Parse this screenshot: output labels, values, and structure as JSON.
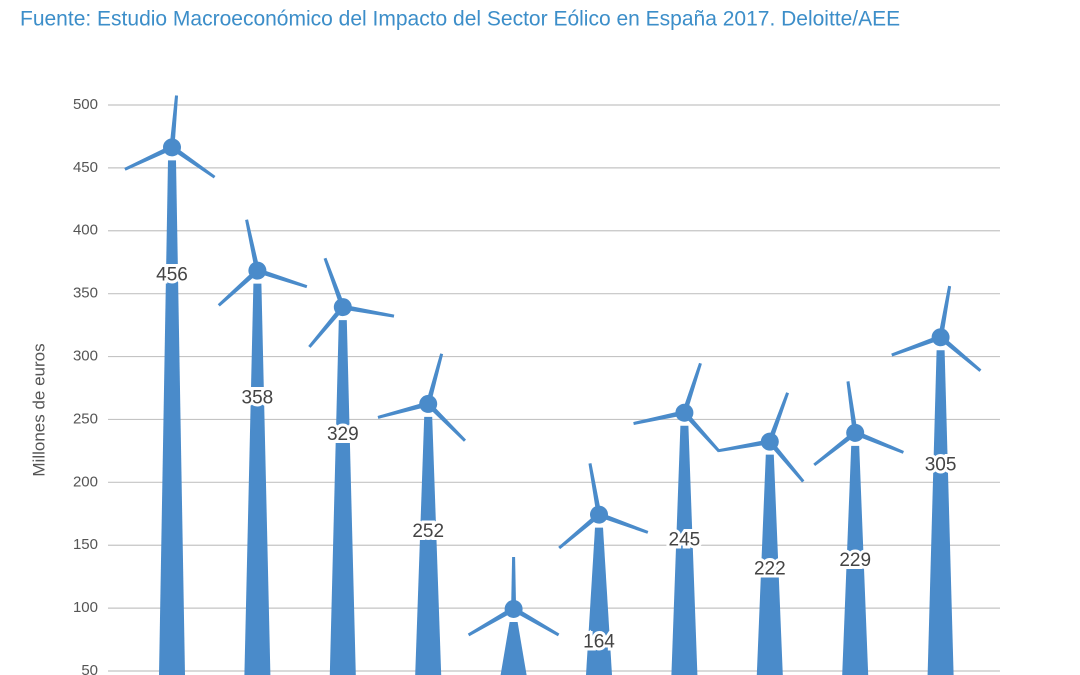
{
  "chart_data": {
    "type": "pictogram-bar",
    "title": "Fuente: Estudio Macroeconómico del Impacto del Sector Eólico en España 2017. Deloitte/AEE",
    "y_label": "Millones de euros",
    "values": [
      456,
      358,
      329,
      252,
      89,
      164,
      245,
      222,
      229,
      305
    ],
    "value_labels": [
      "456",
      "358",
      "329",
      "252",
      null,
      "164",
      "245",
      "222",
      "229",
      "305"
    ],
    "color": "#4a8bca",
    "ylim": [
      50,
      500
    ],
    "yticks": [
      50,
      100,
      150,
      200,
      250,
      300,
      350,
      400,
      450,
      500
    ],
    "grid": true
  }
}
